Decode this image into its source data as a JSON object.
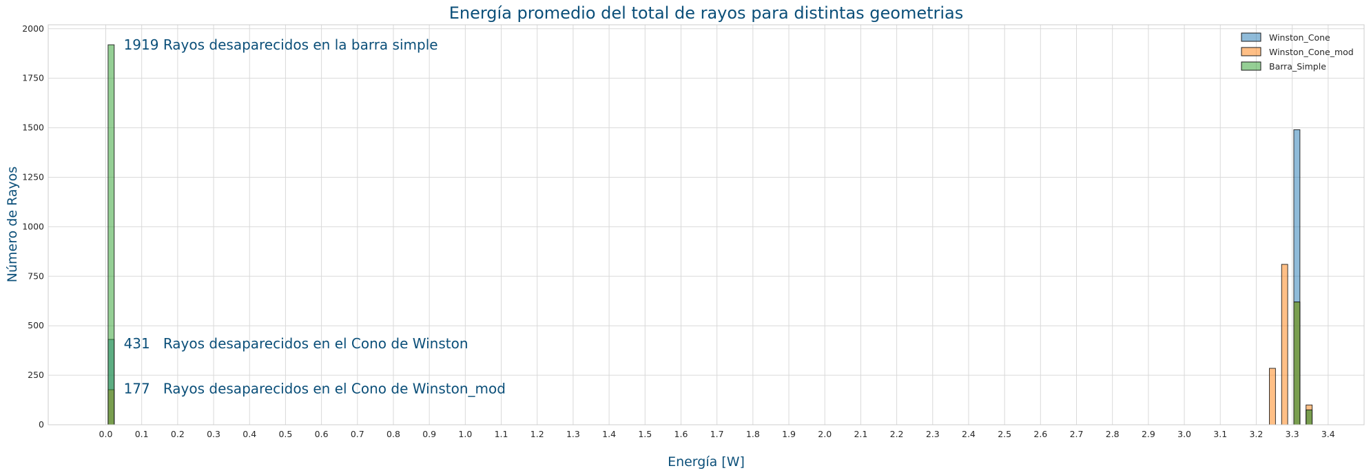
{
  "chart_data": {
    "type": "bar",
    "title": "Energía promedio del total de rayos para distintas geometrias",
    "xlabel": "Energía [W]",
    "ylabel": "Número de Rayos",
    "xlim": [
      -0.16,
      3.5
    ],
    "ylim": [
      0,
      2020
    ],
    "xticks": [
      "0.0",
      "0.1",
      "0.2",
      "0.3",
      "0.4",
      "0.5",
      "0.6",
      "0.7",
      "0.8",
      "0.9",
      "1.0",
      "1.1",
      "1.2",
      "1.3",
      "1.4",
      "1.5",
      "1.6",
      "1.7",
      "1.8",
      "1.9",
      "2.0",
      "2.1",
      "2.2",
      "2.3",
      "2.4",
      "2.5",
      "2.6",
      "2.7",
      "2.8",
      "2.9",
      "3.0",
      "3.1",
      "3.2",
      "3.3",
      "3.4"
    ],
    "yticks": [
      "0",
      "250",
      "500",
      "750",
      "1000",
      "1250",
      "1500",
      "1750",
      "2000"
    ],
    "grid": true,
    "legend_position": "top-right",
    "bar_width": 0.017,
    "series": [
      {
        "name": "Winston_Cone",
        "color": "#1f77b4",
        "bars": [
          {
            "x": 0.015,
            "y": 431
          },
          {
            "x": 3.313,
            "y": 1490
          },
          {
            "x": 3.347,
            "y": 75
          }
        ]
      },
      {
        "name": "Winston_Cone_mod",
        "color": "#ff7f0e",
        "bars": [
          {
            "x": 0.015,
            "y": 177
          },
          {
            "x": 3.245,
            "y": 285
          },
          {
            "x": 3.279,
            "y": 810
          },
          {
            "x": 3.313,
            "y": 620
          },
          {
            "x": 3.347,
            "y": 100
          }
        ]
      },
      {
        "name": "Barra_Simple",
        "color": "#2ca02c",
        "bars": [
          {
            "x": 0.015,
            "y": 1919
          },
          {
            "x": 3.313,
            "y": 620
          },
          {
            "x": 3.347,
            "y": 75
          }
        ]
      }
    ],
    "annotations": [
      {
        "text": "1919 Rayos desaparecidos en la barra simple",
        "x": 0.05,
        "y": 1919
      },
      {
        "text": "431   Rayos desaparecidos en el Cono de Winston",
        "x": 0.05,
        "y": 410
      },
      {
        "text": "177   Rayos desaparecidos en el Cono de Winston_mod",
        "x": 0.05,
        "y": 183
      }
    ]
  }
}
